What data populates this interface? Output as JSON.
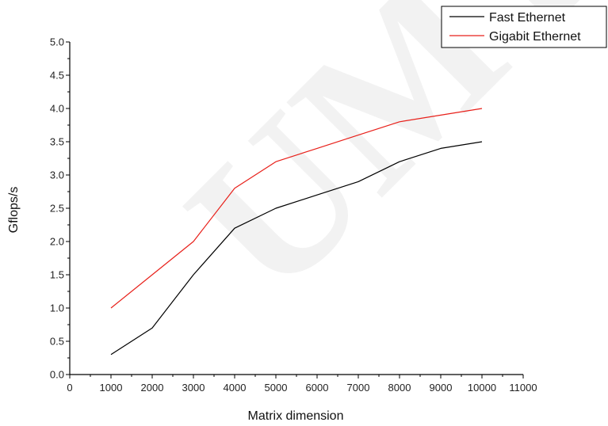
{
  "watermark": {
    "text": "UMT"
  },
  "chart_data": {
    "type": "line",
    "title": "",
    "xlabel": "Matrix dimension",
    "ylabel": "Gflops/s",
    "xlim": [
      0,
      11000
    ],
    "ylim": [
      0,
      5
    ],
    "xticks": [
      0,
      1000,
      2000,
      3000,
      4000,
      5000,
      6000,
      7000,
      8000,
      9000,
      10000,
      11000
    ],
    "yticks": [
      "0.0",
      "0.5",
      "1.0",
      "1.5",
      "2.0",
      "2.5",
      "3.0",
      "3.5",
      "4.0",
      "4.5",
      "5.0"
    ],
    "x": [
      1000,
      2000,
      3000,
      4000,
      5000,
      6000,
      7000,
      8000,
      9000,
      10000
    ],
    "series": [
      {
        "name": "Fast Ethernet",
        "color": "#000000",
        "values": [
          0.3,
          0.7,
          1.5,
          2.2,
          2.5,
          2.7,
          2.9,
          3.2,
          3.4,
          3.5
        ]
      },
      {
        "name": "Gigabit Ethernet",
        "color": "#e8201a",
        "values": [
          1.0,
          1.5,
          2.0,
          2.8,
          3.2,
          3.4,
          3.6,
          3.8,
          3.9,
          4.0
        ]
      }
    ],
    "grid": false,
    "legend": "top-right"
  }
}
